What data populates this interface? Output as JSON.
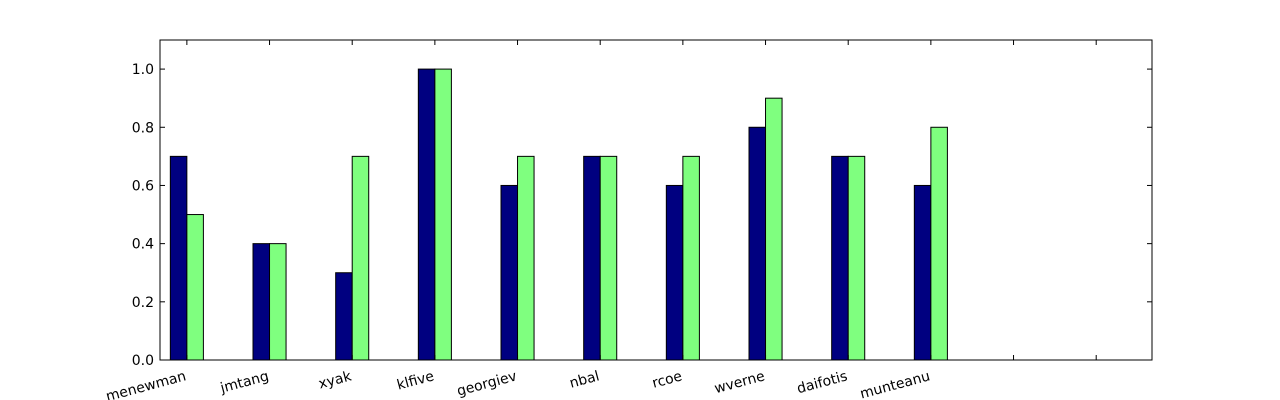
{
  "chart_data": {
    "type": "bar",
    "categories": [
      "menewman",
      "jmtang",
      "xyak",
      "klfive",
      "georgiev",
      "nbal",
      "rcoe",
      "wverne",
      "daifotis",
      "munteanu",
      "",
      ""
    ],
    "series": [
      {
        "values": [
          0.7,
          0.4,
          0.3,
          1.0,
          0.6,
          0.7,
          0.6,
          0.8,
          0.7,
          0.6,
          0,
          0
        ],
        "color": "#000080"
      },
      {
        "values": [
          0.5,
          0.4,
          0.7,
          1.0,
          0.7,
          0.7,
          0.7,
          0.9,
          0.7,
          0.8,
          0,
          0
        ],
        "color": "#7fff7f"
      }
    ],
    "title": "",
    "xlabel": "",
    "ylabel": "",
    "ylim": [
      0,
      1.1
    ],
    "yticks": [
      "0.0",
      "0.2",
      "0.4",
      "0.6",
      "0.8",
      "1.0"
    ],
    "grid": false,
    "legend": "none"
  }
}
